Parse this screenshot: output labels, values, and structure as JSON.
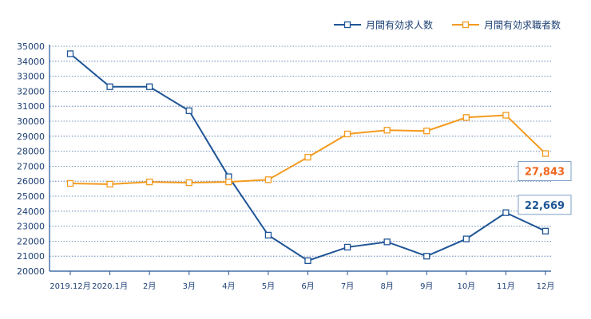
{
  "chart_data": {
    "type": "line",
    "categories": [
      "2019.12月",
      "2020.1月",
      "2月",
      "3月",
      "4月",
      "5月",
      "6月",
      "7月",
      "8月",
      "9月",
      "10月",
      "11月",
      "12月"
    ],
    "series": [
      {
        "name": "月間有効求人数",
        "color": "#1f5596",
        "values": [
          34500,
          32300,
          32300,
          30700,
          26300,
          22400,
          20700,
          21600,
          21950,
          21000,
          22150,
          23900,
          22669
        ]
      },
      {
        "name": "月間有効求職者数",
        "color": "#f39a1e",
        "values": [
          25850,
          25800,
          25950,
          25900,
          25950,
          26100,
          27600,
          29150,
          29400,
          29350,
          30250,
          30400,
          27843
        ]
      }
    ],
    "ylim": [
      20000,
      35000
    ],
    "yticks": [
      20000,
      21000,
      22000,
      23000,
      24000,
      25000,
      26000,
      27000,
      28000,
      29000,
      30000,
      31000,
      32000,
      33000,
      34000,
      35000
    ],
    "grid": "horizontal-dotted",
    "legend_position": "top-right",
    "callouts": [
      {
        "series": 1,
        "text": "27,843",
        "color": "#f0661e"
      },
      {
        "series": 0,
        "text": "22,669",
        "color": "#1f5596"
      }
    ]
  }
}
